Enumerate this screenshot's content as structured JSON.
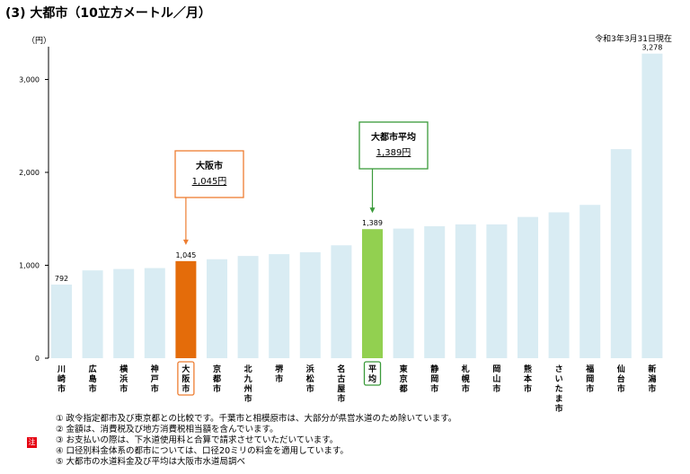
{
  "title": "(3) 大都市（10立方メートル／月）",
  "as_of": "令和3年3月31日現在",
  "colors": {
    "bar": "#d9ecf3",
    "osaka": "#e46c0a",
    "average": "#92d050",
    "osaka_box": "#ed7d31",
    "average_box": "#3a9a3a",
    "note_badge": "#e60012"
  },
  "chart_data": {
    "type": "bar",
    "unit": "（円）",
    "categories": [
      "川崎市",
      "広島市",
      "横浜市",
      "神戸市",
      "大阪市",
      "京都市",
      "北九州市",
      "堺市",
      "浜松市",
      "名古屋市",
      "平均",
      "東京都",
      "静岡市",
      "札幌市",
      "岡山市",
      "熊本市",
      "さいたま市",
      "福岡市",
      "仙台市",
      "新潟市"
    ],
    "values": [
      792,
      945,
      960,
      970,
      1045,
      1065,
      1100,
      1120,
      1140,
      1215,
      1389,
      1395,
      1420,
      1440,
      1440,
      1520,
      1570,
      1650,
      2250,
      3278
    ],
    "data_labels": {
      "0": "792",
      "4": "1,045",
      "10": "1,389",
      "19": "3,278"
    },
    "yticks": [
      {
        "value": 0,
        "label": "0"
      },
      {
        "value": 1000,
        "label": "1,000"
      },
      {
        "value": 2000,
        "label": "2,000"
      },
      {
        "value": 3000,
        "label": "3,000"
      }
    ],
    "ylim": [
      0,
      3400
    ],
    "highlights": {
      "osaka_index": 4,
      "average_index": 10
    },
    "annotations": [
      {
        "title": "大阪市",
        "value": "1,045円"
      },
      {
        "title": "大都市平均",
        "value": "1,389円"
      }
    ]
  },
  "notes": {
    "badge": "注",
    "items": [
      "① 政令指定都市及び東京都との比較です。千葉市と相模原市は、大部分が県営水道のため除いています。",
      "② 金額は、消費税及び地方消費税相当額を含んでいます。",
      "③ お支払いの際は、下水道使用料と合算で請求させていただいています。",
      "④ 口径別料金体系の都市については、口径20ミリの料金を適用しています。",
      "⑤ 大都市の水道料金及び平均は大阪市水道局調べ"
    ]
  }
}
